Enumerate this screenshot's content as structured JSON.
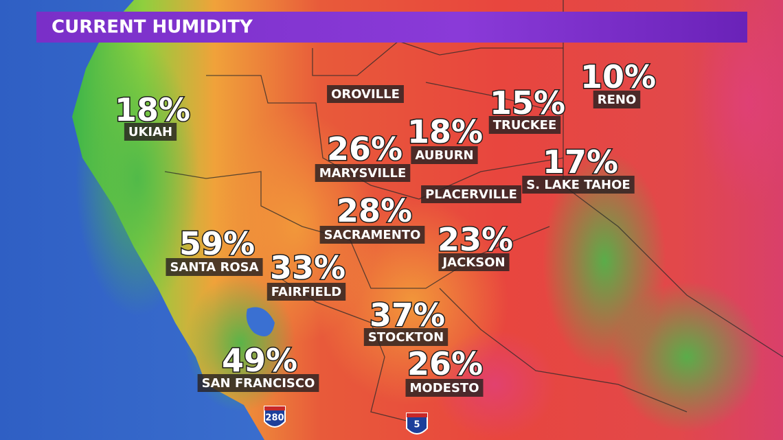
{
  "header": {
    "title": "CURRENT HUMIDITY"
  },
  "cities": [
    {
      "name": "UKIAH",
      "humidity": "18%"
    },
    {
      "name": "OROVILLE"
    },
    {
      "name": "MARYSVILLE",
      "humidity": "26%"
    },
    {
      "name": "AUBURN",
      "humidity": "18%"
    },
    {
      "name": "TRUCKEE",
      "humidity": "15%"
    },
    {
      "name": "RENO",
      "humidity": "10%"
    },
    {
      "name": "S. LAKE TAHOE",
      "humidity": "17%"
    },
    {
      "name": "PLACERVILLE"
    },
    {
      "name": "SACRAMENTO",
      "humidity": "28%"
    },
    {
      "name": "SANTA ROSA",
      "humidity": "59%"
    },
    {
      "name": "FAIRFIELD",
      "humidity": "33%"
    },
    {
      "name": "JACKSON",
      "humidity": "23%"
    },
    {
      "name": "STOCKTON",
      "humidity": "37%"
    },
    {
      "name": "SAN FRANCISCO",
      "humidity": "49%"
    },
    {
      "name": "MODESTO",
      "humidity": "26%"
    }
  ],
  "highways": [
    {
      "label": "280"
    },
    {
      "label": "5"
    }
  ]
}
